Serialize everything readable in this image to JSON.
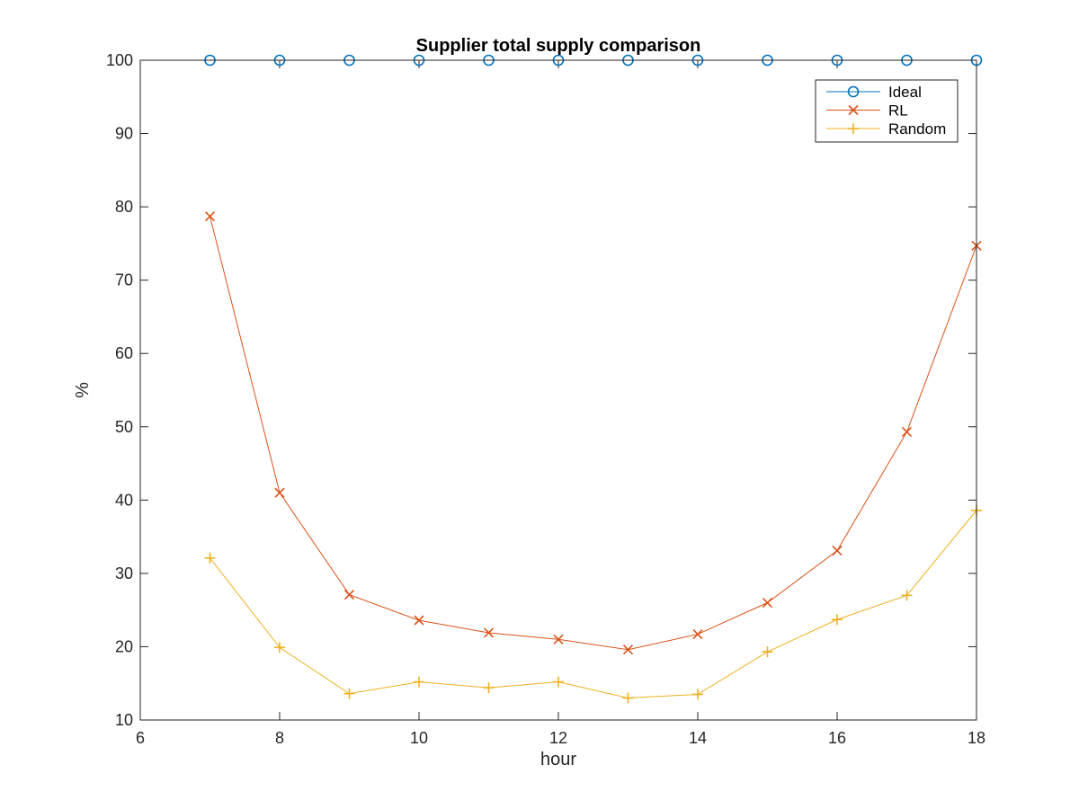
{
  "chart_data": {
    "type": "line",
    "title": "Supplier total supply comparison",
    "xlabel": "hour",
    "ylabel": "%",
    "xlim": [
      6,
      18
    ],
    "ylim": [
      10,
      100
    ],
    "xticks": [
      6,
      8,
      10,
      12,
      14,
      16,
      18
    ],
    "yticks": [
      10,
      20,
      30,
      40,
      50,
      60,
      70,
      80,
      90,
      100
    ],
    "grid": false,
    "legend_position": "top-right",
    "x": [
      7,
      8,
      9,
      10,
      11,
      12,
      13,
      14,
      15,
      16,
      17,
      18
    ],
    "series": [
      {
        "name": "Ideal",
        "marker": "circle",
        "color": "#0072BD",
        "values": [
          100,
          100,
          100,
          100,
          100,
          100,
          100,
          100,
          100,
          100,
          100,
          100
        ]
      },
      {
        "name": "RL",
        "marker": "x",
        "color": "#D95319",
        "values": [
          78.7,
          41.0,
          27.1,
          23.6,
          21.9,
          21.0,
          19.6,
          21.7,
          26.0,
          33.1,
          49.3,
          74.7
        ]
      },
      {
        "name": "Random",
        "marker": "plus",
        "color": "#EDB120",
        "values": [
          32.1,
          19.9,
          13.6,
          15.2,
          14.4,
          15.2,
          13.0,
          13.5,
          19.3,
          23.7,
          27.0,
          38.6
        ]
      }
    ]
  }
}
